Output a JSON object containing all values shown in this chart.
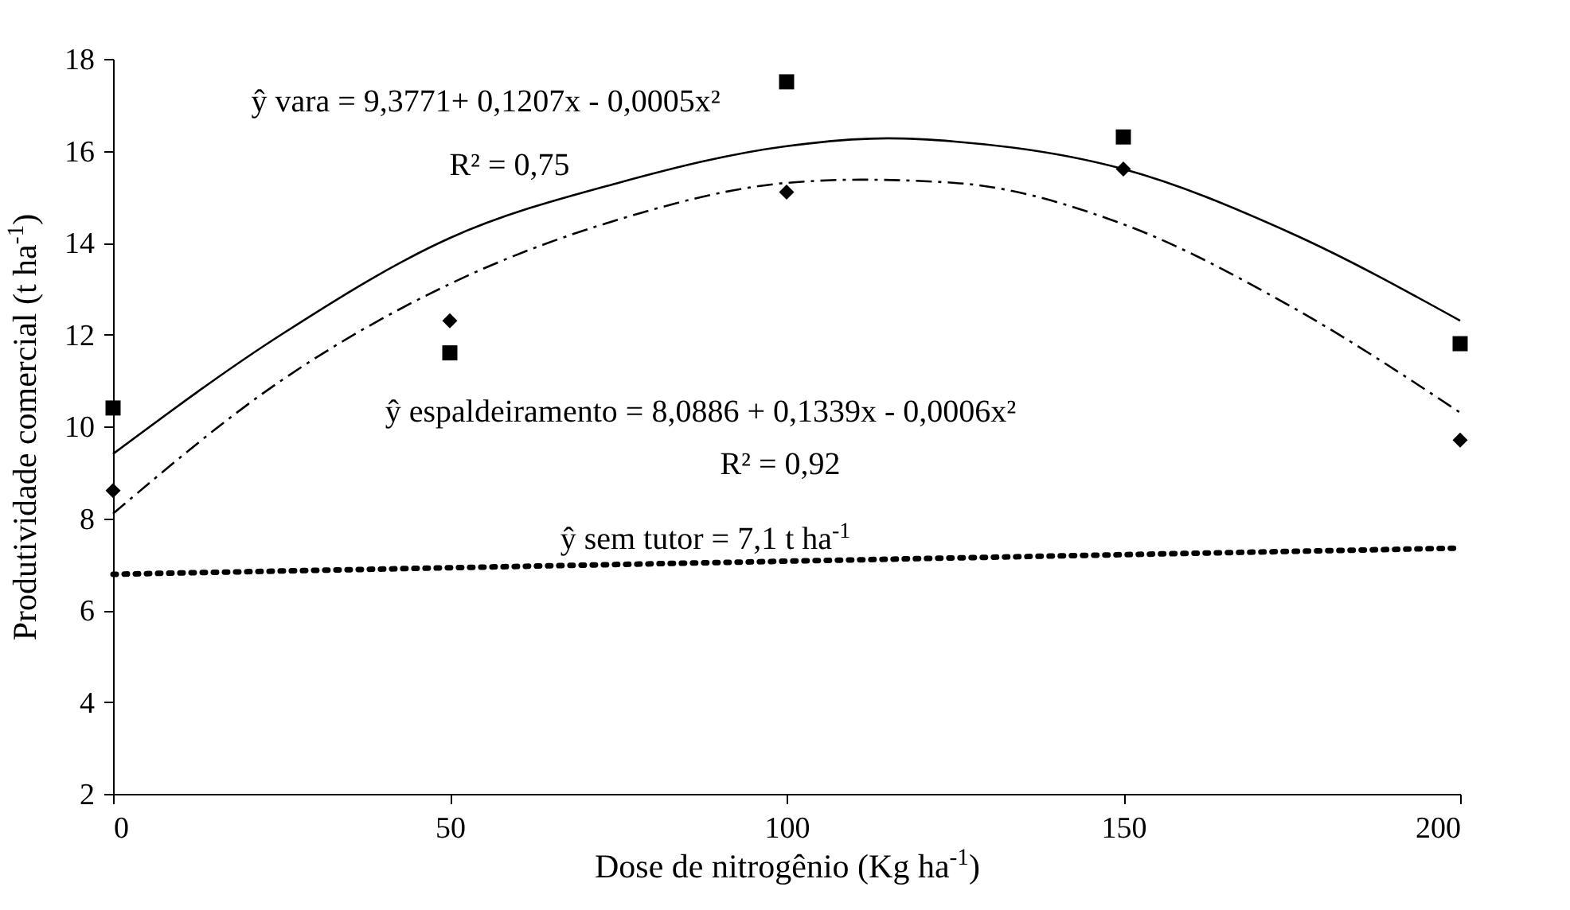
{
  "chart_data": {
    "type": "scatter",
    "xlabel": "Dose de nitrogênio (Kg ha$^{-1}$)",
    "ylabel": "Produtividade comercial (t ha$^{-1}$)",
    "x": [
      0,
      50,
      100,
      150,
      200
    ],
    "series": [
      {
        "color": "#000000",
        "marker": "square",
        "values": [
          10.4,
          11.6,
          17.5,
          16.3,
          11.8
        ]
      },
      {
        "color": "#000000",
        "marker": "diamond",
        "values": [
          8.6,
          12.3,
          15.1,
          15.6,
          9.7
        ]
      },
      {
        "type": "line",
        "color": "#000000",
        "marker": "none",
        "line_style": "solid",
        "x": [
          0,
          25,
          50,
          75,
          100,
          115,
          125,
          150,
          175,
          200
        ],
        "values": [
          9.4,
          12.0,
          14.1,
          15.3,
          16.1,
          16.27,
          16.2,
          15.6,
          14.2,
          12.3
        ]
      },
      {
        "type": "line",
        "color": "#000000",
        "marker": "none",
        "line_style": "dashed",
        "x": [
          0,
          25,
          50,
          75,
          100,
          111,
          125,
          150,
          175,
          200
        ],
        "values": [
          8.1,
          11.0,
          13.1,
          14.5,
          15.3,
          15.37,
          15.3,
          14.4,
          12.6,
          10.3
        ]
      },
      {
        "type": "line",
        "color": "#000000",
        "marker": "none",
        "line_style": "dotted",
        "x": [
          0,
          200
        ],
        "values": [
          6.78,
          7.35
        ]
      }
    ],
    "xlim": [
      0,
      200
    ],
    "xticks": [
      0,
      50,
      100,
      150,
      200
    ],
    "ylim": [
      2,
      18
    ],
    "yticks": [
      2,
      4,
      6,
      8,
      10,
      12,
      14,
      16,
      18
    ],
    "grid": false,
    "annotations": [
      "ŷ vara = 9,3771+ 0,1207x - 0,0005x²",
      "R² = 0,75",
      "ŷ espaldeiramento = 8,0886 + 0,1339x - 0,0006x²",
      "R² = 0,92",
      "ŷ sem tutor = 7,1 t ha$^{-1}$"
    ]
  }
}
